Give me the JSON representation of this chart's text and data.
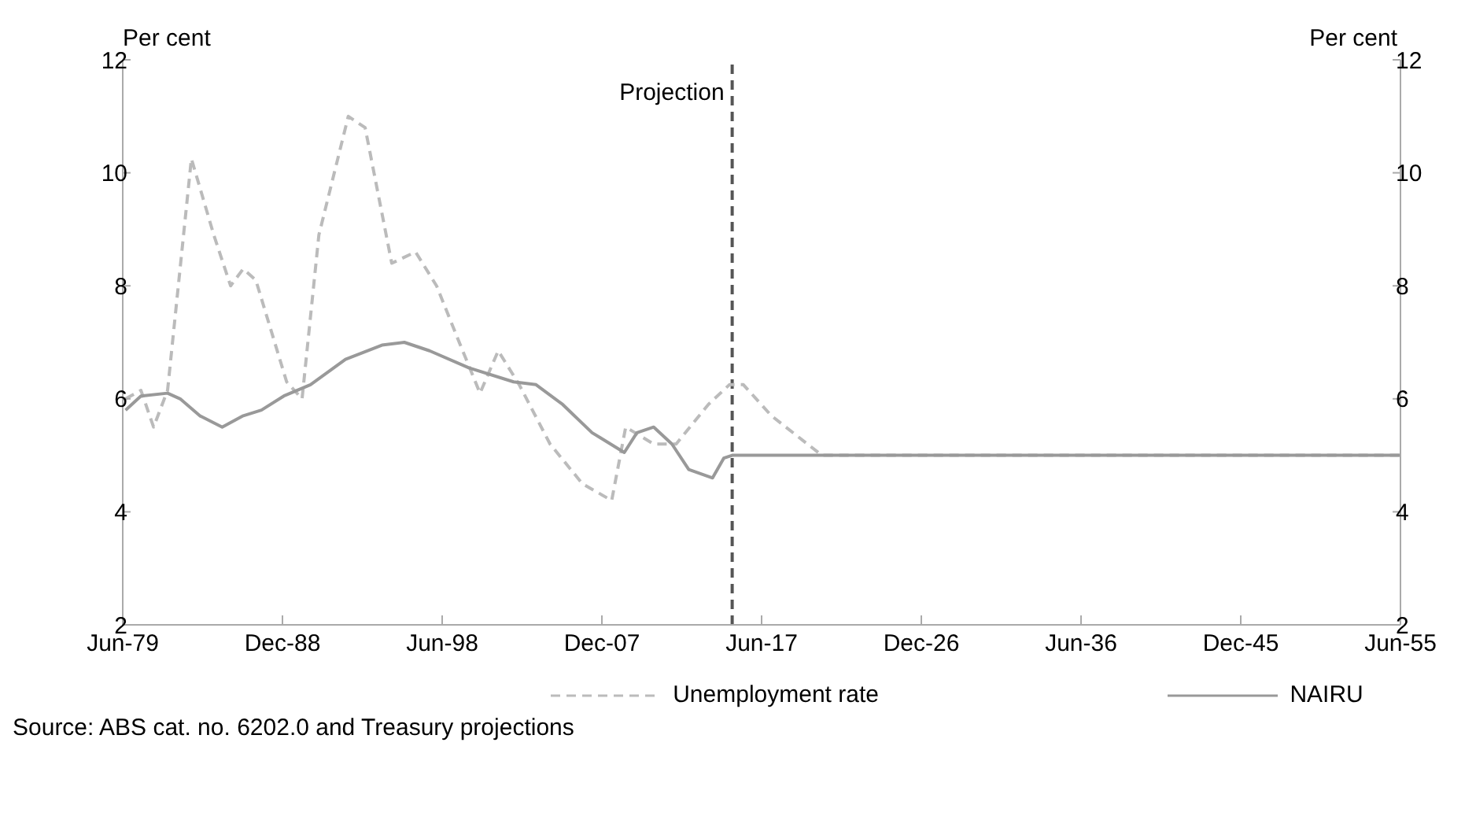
{
  "chart_data": {
    "type": "line",
    "ylabel": "Per cent",
    "y2label": "Per cent",
    "xlim": [
      "1979-06",
      "2055-06"
    ],
    "xticks": [
      {
        "value": "1979-06",
        "label": "Jun-79"
      },
      {
        "value": "1988-12",
        "label": "Dec-88"
      },
      {
        "value": "1998-06",
        "label": "Jun-98"
      },
      {
        "value": "2007-12",
        "label": "Dec-07"
      },
      {
        "value": "2017-06",
        "label": "Jun-17"
      },
      {
        "value": "2026-12",
        "label": "Dec-26"
      },
      {
        "value": "2036-06",
        "label": "Jun-36"
      },
      {
        "value": "2045-12",
        "label": "Dec-45"
      },
      {
        "value": "2055-06",
        "label": "Jun-55"
      }
    ],
    "ylim": [
      2,
      12
    ],
    "yticks": [
      2,
      4,
      6,
      8,
      10,
      12
    ],
    "y2lim": [
      2,
      12
    ],
    "y2ticks": [
      2,
      4,
      6,
      8,
      10,
      12
    ],
    "series": [
      {
        "name": "Unemployment rate",
        "color": "#bbbbbb",
        "line_style": "dashed",
        "x": [
          "1979-08",
          "1980-07",
          "1981-04",
          "1982-02",
          "1983-07",
          "1984-11",
          "1985-11",
          "1986-08",
          "1987-05",
          "1989-03",
          "1990-02",
          "1991-02",
          "1992-11",
          "1993-11",
          "1995-06",
          "1996-11",
          "1998-02",
          "1999-07",
          "2000-09",
          "2001-10",
          "2003-01",
          "2004-11",
          "2006-10",
          "2008-07",
          "2009-05",
          "2011-01",
          "2012-05",
          "2014-04",
          "2015-07",
          "2016-05",
          "2018-01",
          "2021-01",
          "2055-06"
        ],
        "values": [
          6.0,
          6.15,
          5.5,
          6.15,
          10.25,
          8.9,
          8.0,
          8.3,
          8.1,
          6.3,
          6.0,
          8.9,
          11.0,
          10.8,
          8.4,
          8.6,
          8.0,
          6.95,
          6.1,
          6.85,
          6.25,
          5.2,
          4.5,
          4.2,
          5.5,
          5.2,
          5.2,
          5.9,
          6.25,
          6.25,
          5.7,
          5.0,
          5.0
        ]
      },
      {
        "name": "NAIRU",
        "color": "#999999",
        "line_style": "solid",
        "x": [
          "1979-08",
          "1980-07",
          "1982-02",
          "1982-11",
          "1984-01",
          "1985-05",
          "1986-08",
          "1987-09",
          "1989-01",
          "1990-08",
          "1992-09",
          "1994-11",
          "1996-03",
          "1997-09",
          "2000-01",
          "2002-09",
          "2004-01",
          "2005-08",
          "2007-05",
          "2009-04",
          "2010-01",
          "2011-01",
          "2012-02",
          "2013-02",
          "2014-07",
          "2015-03",
          "2015-09",
          "2055-06"
        ],
        "values": [
          5.8,
          6.05,
          6.1,
          6.0,
          5.7,
          5.5,
          5.7,
          5.8,
          6.05,
          6.25,
          6.7,
          6.95,
          7.0,
          6.85,
          6.55,
          6.3,
          6.25,
          5.9,
          5.4,
          5.05,
          5.4,
          5.5,
          5.2,
          4.75,
          4.6,
          4.95,
          5.0,
          5.0
        ]
      }
    ],
    "ref_lines": [
      {
        "axis": "x",
        "value": "2015-09",
        "label": "Projection",
        "color": "#555555",
        "line_style": "dashed"
      }
    ],
    "legend": "bottom",
    "marker": "none",
    "annotations": [
      "Source: ABS cat. no. 6202.0 and Treasury projections"
    ]
  }
}
